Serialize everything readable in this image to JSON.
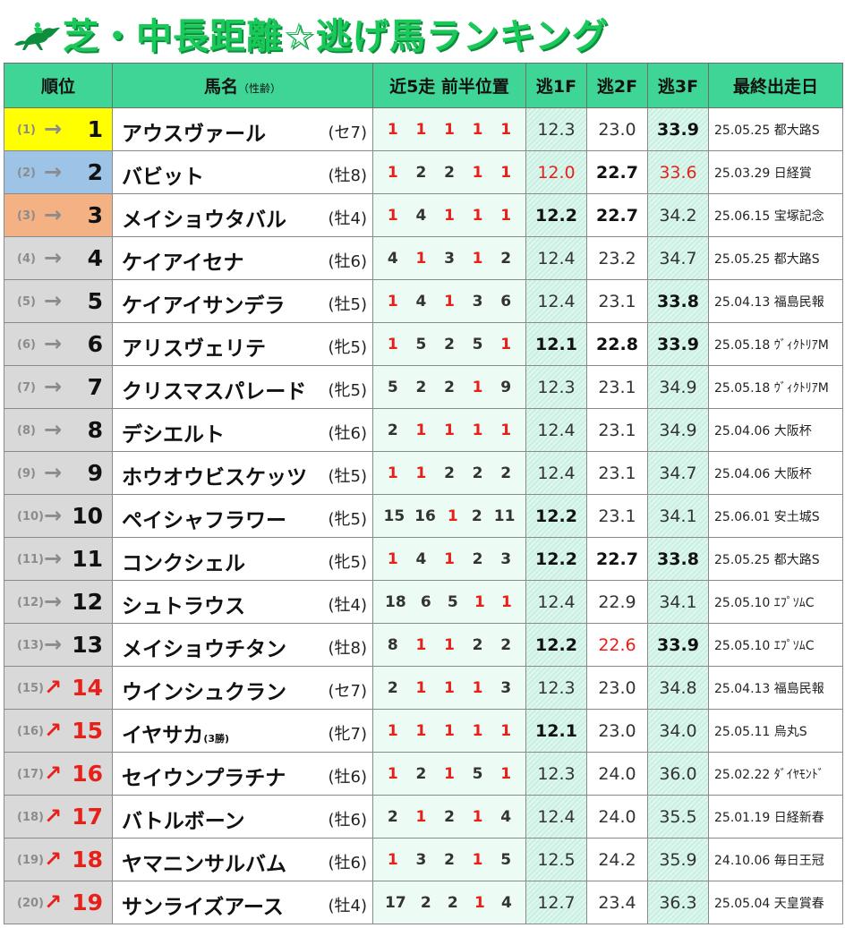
{
  "title": "芝・中長距離☆逃げ馬ランキング",
  "icon": "racehorse-jockey-icon",
  "headers": {
    "rank": "順位",
    "name": "馬名",
    "name_sub": "（性齢）",
    "positions": "近5走 前半位置",
    "f1": "逃1F",
    "f2": "逃2F",
    "f3": "逃3F",
    "last": "最終出走日"
  },
  "colors": {
    "title": "#19c95a",
    "header_bg": "#3fd597",
    "red": "#e8201a",
    "gold": "#ffff00",
    "silver": "#9dc3e6",
    "bronze": "#f4b183"
  },
  "chart_data": {
    "type": "table",
    "title": "芝・中長距離☆逃げ馬ランキング",
    "columns": [
      "順位",
      "馬名（性齢）",
      "近5走 前半位置",
      "逃1F",
      "逃2F",
      "逃3F",
      "最終出走日"
    ],
    "rows": [
      {
        "prev": "(1)",
        "trend": "→",
        "rank": "1",
        "name": "アウスヴァール",
        "note": "",
        "sexage": "(セ7)",
        "pos": [
          "1",
          "1",
          "1",
          "1",
          "1"
        ],
        "f1": "12.3",
        "f2": "23.0",
        "f3": "33.9",
        "f1s": "",
        "f2s": "",
        "f3s": "b",
        "last": "25.05.25 都大路S"
      },
      {
        "prev": "(2)",
        "trend": "→",
        "rank": "2",
        "name": "バビット",
        "note": "",
        "sexage": "(牡8)",
        "pos": [
          "1",
          "2",
          "2",
          "1",
          "1"
        ],
        "f1": "12.0",
        "f2": "22.7",
        "f3": "33.6",
        "f1s": "r",
        "f2s": "b",
        "f3s": "r",
        "last": "25.03.29 日経賞"
      },
      {
        "prev": "(3)",
        "trend": "→",
        "rank": "3",
        "name": "メイショウタバル",
        "note": "",
        "sexage": "(牡4)",
        "pos": [
          "1",
          "4",
          "1",
          "1",
          "1"
        ],
        "f1": "12.2",
        "f2": "22.7",
        "f3": "34.2",
        "f1s": "b",
        "f2s": "b",
        "f3s": "",
        "last": "25.06.15 宝塚記念"
      },
      {
        "prev": "(4)",
        "trend": "→",
        "rank": "4",
        "name": "ケイアイセナ",
        "note": "",
        "sexage": "(牡6)",
        "pos": [
          "4",
          "1",
          "3",
          "1",
          "2"
        ],
        "f1": "12.4",
        "f2": "23.2",
        "f3": "34.7",
        "f1s": "",
        "f2s": "",
        "f3s": "",
        "last": "25.05.25 都大路S"
      },
      {
        "prev": "(5)",
        "trend": "→",
        "rank": "5",
        "name": "ケイアイサンデラ",
        "note": "",
        "sexage": "(牡5)",
        "pos": [
          "1",
          "4",
          "1",
          "3",
          "6"
        ],
        "f1": "12.4",
        "f2": "23.1",
        "f3": "33.8",
        "f1s": "",
        "f2s": "",
        "f3s": "b",
        "last": "25.04.13 福島民報"
      },
      {
        "prev": "(6)",
        "trend": "→",
        "rank": "6",
        "name": "アリスヴェリテ",
        "note": "",
        "sexage": "(牝5)",
        "pos": [
          "1",
          "5",
          "2",
          "5",
          "1"
        ],
        "f1": "12.1",
        "f2": "22.8",
        "f3": "33.9",
        "f1s": "b",
        "f2s": "b",
        "f3s": "b",
        "last": "25.05.18 ｳﾞｨｸﾄﾘｱM"
      },
      {
        "prev": "(7)",
        "trend": "→",
        "rank": "7",
        "name": "クリスマスパレード",
        "note": "",
        "sexage": "(牝5)",
        "pos": [
          "5",
          "2",
          "2",
          "1",
          "9"
        ],
        "f1": "12.3",
        "f2": "23.1",
        "f3": "34.9",
        "f1s": "",
        "f2s": "",
        "f3s": "",
        "last": "25.05.18 ｳﾞｨｸﾄﾘｱM"
      },
      {
        "prev": "(8)",
        "trend": "→",
        "rank": "8",
        "name": "デシエルト",
        "note": "",
        "sexage": "(牡6)",
        "pos": [
          "2",
          "1",
          "1",
          "1",
          "1"
        ],
        "f1": "12.4",
        "f2": "23.1",
        "f3": "34.9",
        "f1s": "",
        "f2s": "",
        "f3s": "",
        "last": "25.04.06 大阪杯"
      },
      {
        "prev": "(9)",
        "trend": "→",
        "rank": "9",
        "name": "ホウオウビスケッツ",
        "note": "",
        "sexage": "(牡5)",
        "pos": [
          "1",
          "1",
          "2",
          "2",
          "2"
        ],
        "f1": "12.4",
        "f2": "23.1",
        "f3": "34.7",
        "f1s": "",
        "f2s": "",
        "f3s": "",
        "last": "25.04.06 大阪杯"
      },
      {
        "prev": "(10)",
        "trend": "→",
        "rank": "10",
        "name": "ペイシャフラワー",
        "note": "",
        "sexage": "(牝5)",
        "pos": [
          "15",
          "16",
          "1",
          "2",
          "11"
        ],
        "f1": "12.2",
        "f2": "23.1",
        "f3": "34.1",
        "f1s": "b",
        "f2s": "",
        "f3s": "",
        "last": "25.06.01 安土城S"
      },
      {
        "prev": "(11)",
        "trend": "→",
        "rank": "11",
        "name": "コンクシェル",
        "note": "",
        "sexage": "(牝5)",
        "pos": [
          "1",
          "4",
          "1",
          "2",
          "3"
        ],
        "f1": "12.2",
        "f2": "22.7",
        "f3": "33.8",
        "f1s": "b",
        "f2s": "b",
        "f3s": "b",
        "last": "25.05.25 都大路S"
      },
      {
        "prev": "(12)",
        "trend": "→",
        "rank": "12",
        "name": "シュトラウス",
        "note": "",
        "sexage": "(牡4)",
        "pos": [
          "18",
          "6",
          "5",
          "1",
          "1"
        ],
        "f1": "12.4",
        "f2": "22.9",
        "f3": "34.1",
        "f1s": "",
        "f2s": "",
        "f3s": "",
        "last": "25.05.10 ｴﾌﾟｿﾑC"
      },
      {
        "prev": "(13)",
        "trend": "→",
        "rank": "13",
        "name": "メイショウチタン",
        "note": "",
        "sexage": "(牡8)",
        "pos": [
          "8",
          "1",
          "1",
          "2",
          "2"
        ],
        "f1": "12.2",
        "f2": "22.6",
        "f3": "33.9",
        "f1s": "b",
        "f2s": "r",
        "f3s": "b",
        "last": "25.05.10 ｴﾌﾟｿﾑC"
      },
      {
        "prev": "(15)",
        "trend": "↗",
        "rank": "14",
        "name": "ウインシュクラン",
        "note": "",
        "sexage": "(セ7)",
        "pos": [
          "2",
          "1",
          "1",
          "1",
          "3"
        ],
        "f1": "12.3",
        "f2": "23.0",
        "f3": "34.8",
        "f1s": "",
        "f2s": "",
        "f3s": "",
        "last": "25.04.13 福島民報"
      },
      {
        "prev": "(16)",
        "trend": "↗",
        "rank": "15",
        "name": "イヤサカ",
        "note": "(3勝)",
        "sexage": "(牝7)",
        "pos": [
          "1",
          "1",
          "1",
          "1",
          "1"
        ],
        "f1": "12.1",
        "f2": "23.0",
        "f3": "34.0",
        "f1s": "b",
        "f2s": "",
        "f3s": "",
        "last": "25.05.11 烏丸S"
      },
      {
        "prev": "(17)",
        "trend": "↗",
        "rank": "16",
        "name": "セイウンプラチナ",
        "note": "",
        "sexage": "(牡6)",
        "pos": [
          "1",
          "2",
          "1",
          "5",
          "1"
        ],
        "f1": "12.3",
        "f2": "24.0",
        "f3": "36.0",
        "f1s": "",
        "f2s": "",
        "f3s": "",
        "last": "25.02.22 ﾀﾞｲﾔﾓﾝﾄﾞ"
      },
      {
        "prev": "(18)",
        "trend": "↗",
        "rank": "17",
        "name": "バトルボーン",
        "note": "",
        "sexage": "(牡6)",
        "pos": [
          "2",
          "1",
          "2",
          "1",
          "4"
        ],
        "f1": "12.4",
        "f2": "24.0",
        "f3": "35.5",
        "f1s": "",
        "f2s": "",
        "f3s": "",
        "last": "25.01.19 日経新春"
      },
      {
        "prev": "(19)",
        "trend": "↗",
        "rank": "18",
        "name": "ヤマニンサルバム",
        "note": "",
        "sexage": "(牡6)",
        "pos": [
          "1",
          "3",
          "2",
          "1",
          "5"
        ],
        "f1": "12.5",
        "f2": "24.2",
        "f3": "35.9",
        "f1s": "",
        "f2s": "",
        "f3s": "",
        "last": "24.10.06 毎日王冠"
      },
      {
        "prev": "(20)",
        "trend": "↗",
        "rank": "19",
        "name": "サンライズアース",
        "note": "",
        "sexage": "(牡4)",
        "pos": [
          "17",
          "2",
          "2",
          "1",
          "4"
        ],
        "f1": "12.7",
        "f2": "23.4",
        "f3": "36.3",
        "f1s": "",
        "f2s": "",
        "f3s": "",
        "last": "25.05.04 天皇賞春"
      }
    ]
  }
}
